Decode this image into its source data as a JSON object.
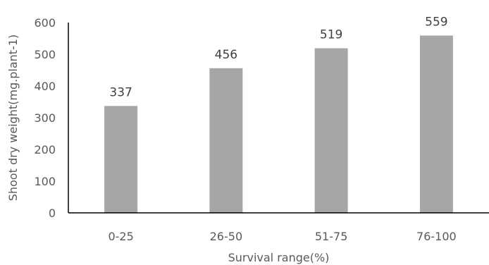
{
  "chart_data": {
    "type": "bar",
    "title": "",
    "xlabel": "Survival range(%)",
    "ylabel": "Shoot dry weight(mg.plant-1)",
    "categories": [
      "0-25",
      "26-50",
      "51-75",
      "76-100"
    ],
    "series": [
      {
        "values": [
          337,
          456,
          519,
          559
        ]
      }
    ],
    "data_labels": [
      "337",
      "456",
      "519",
      "559"
    ],
    "ylim": [
      0,
      600
    ],
    "yticks": [
      "0",
      "100",
      "200",
      "300",
      "400",
      "500",
      "600"
    ],
    "grid": false,
    "legend": "none",
    "colors": {
      "bar": "#a6a6a6",
      "axis": "#000000",
      "text": "#595959"
    }
  }
}
